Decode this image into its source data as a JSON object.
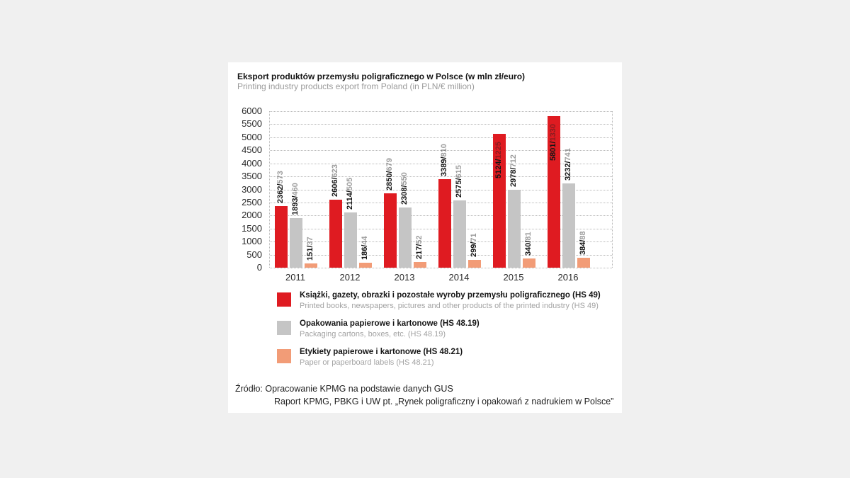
{
  "panel": {
    "title": "Eksport produktów przemysłu poligraficznego w Polsce (w mln zł/euro)",
    "subtitle": "Printing industry products export from Poland (in PLN/€ million)"
  },
  "chart_data": {
    "type": "bar",
    "title": "Eksport produktów przemysłu poligraficznego w Polsce (w mln zł/euro)",
    "subtitle": "Printing industry products export from Poland (in PLN/€ million)",
    "categories": [
      "2011",
      "2012",
      "2013",
      "2014",
      "2015",
      "2016"
    ],
    "ylim": [
      0,
      6000
    ],
    "ytick_step": 500,
    "grid": "horizontal-dotted",
    "legend_position": "bottom-left",
    "bar_label_format": "PLN/EUR, rotated 90°",
    "series": [
      {
        "name_pl": "Książki, gazety, obrazki i pozostałe wyroby przemysłu poligraficznego (HS 49)",
        "name_en": "Printed books, newspapers, pictures and other products of the printed industry (HS 49)",
        "color": "#df1b21",
        "values_pln": [
          2362,
          2606,
          2850,
          3389,
          5124,
          5801
        ],
        "values_eur": [
          573,
          623,
          679,
          810,
          1225,
          1330
        ]
      },
      {
        "name_pl": "Opakowania papierowe i kartonowe (HS 48.19)",
        "name_en": "Packaging cartons, boxes, etc. (HS 48.19)",
        "color": "#c5c5c5",
        "values_pln": [
          1893,
          2114,
          2308,
          2575,
          2978,
          3232
        ],
        "values_eur": [
          460,
          505,
          550,
          615,
          712,
          741
        ]
      },
      {
        "name_pl": "Etykiety papierowe i kartonowe (HS 48.21)",
        "name_en": "Paper or paperboard labels (HS 48.21)",
        "color": "#f29c77",
        "values_pln": [
          151,
          186,
          217,
          299,
          340,
          384
        ],
        "values_eur": [
          37,
          44,
          52,
          71,
          81,
          88
        ]
      }
    ]
  },
  "source": {
    "line1": "Źródło: Opracowanie KPMG na podstawie danych GUS",
    "line2": "Raport KPMG, PBKG i UW pt. „Rynek poligraficzny i opakowań z nadrukiem w Polsce”"
  }
}
